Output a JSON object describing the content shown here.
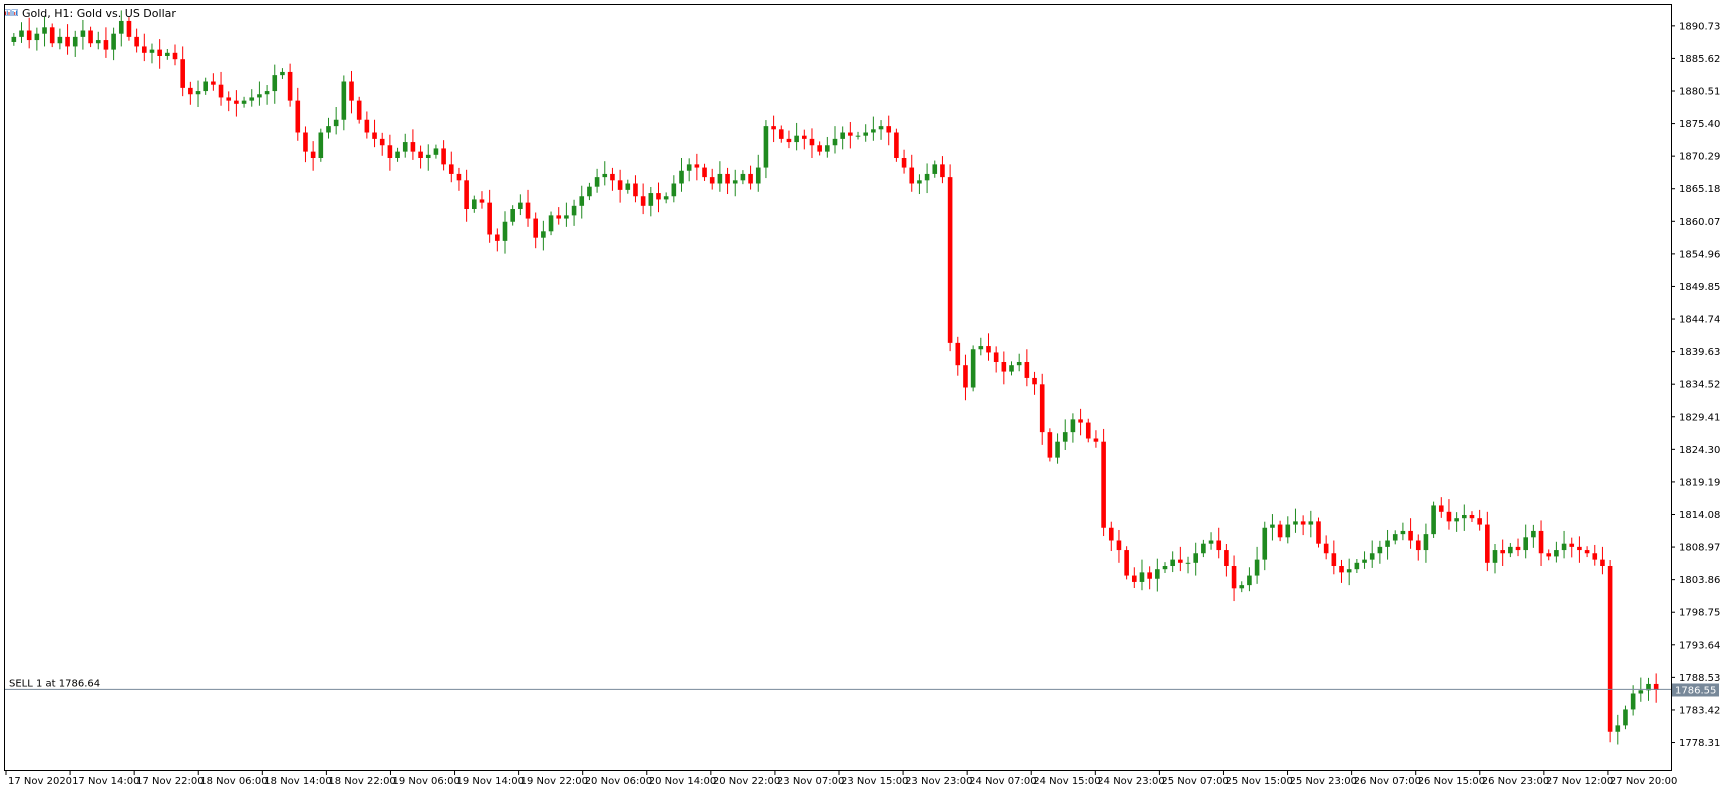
{
  "title_bar": {
    "text": "Gold, H1:  Gold vs. US Dollar",
    "icon": "chart-window-icon"
  },
  "trade_line": {
    "label": "SELL 1 at 1786.64",
    "price": 1786.64,
    "current_price_label": "1786.55",
    "current_price": 1786.55
  },
  "colors": {
    "bull": "#1f8a1f",
    "bear": "#ff0000",
    "wick": "#000000",
    "trade_line": "#778899",
    "price_tag_bg": "#778899",
    "price_tag_text": "#ffffff"
  },
  "chart_data": {
    "type": "candlestick",
    "symbol": "Gold",
    "timeframe": "H1",
    "ylim": [
      1774.0,
      1894.0
    ],
    "y_ticks": [
      "1890.73",
      "1885.62",
      "1880.51",
      "1875.40",
      "1870.29",
      "1865.18",
      "1860.07",
      "1854.96",
      "1849.85",
      "1844.74",
      "1839.63",
      "1834.52",
      "1829.41",
      "1824.30",
      "1819.19",
      "1814.08",
      "1808.97",
      "1803.86",
      "1798.75",
      "1793.64",
      "1788.53",
      "1783.42",
      "1778.31"
    ],
    "x_ticks": [
      "17 Nov 2020",
      "17 Nov 14:00",
      "17 Nov 22:00",
      "18 Nov 06:00",
      "18 Nov 14:00",
      "18 Nov 22:00",
      "19 Nov 06:00",
      "19 Nov 14:00",
      "19 Nov 22:00",
      "20 Nov 06:00",
      "20 Nov 14:00",
      "20 Nov 22:00",
      "23 Nov 07:00",
      "23 Nov 15:00",
      "23 Nov 23:00",
      "24 Nov 07:00",
      "24 Nov 15:00",
      "24 Nov 23:00",
      "25 Nov 07:00",
      "25 Nov 15:00",
      "25 Nov 23:00",
      "26 Nov 07:00",
      "26 Nov 15:00",
      "26 Nov 23:00",
      "27 Nov 12:00",
      "27 Nov 20:00"
    ],
    "close_path": [
      1889.0,
      1890.0,
      1888.5,
      1889.5,
      1890.5,
      1888.0,
      1889.0,
      1887.5,
      1889.0,
      1890.0,
      1888.0,
      1888.5,
      1887.0,
      1889.5,
      1891.5,
      1889.0,
      1887.5,
      1886.5,
      1887.0,
      1886.0,
      1886.5,
      1885.5,
      1881.0,
      1880.0,
      1880.5,
      1882.0,
      1881.5,
      1879.5,
      1879.0,
      1878.5,
      1879.0,
      1879.5,
      1880.0,
      1880.5,
      1883.0,
      1883.5,
      1879.0,
      1874.0,
      1871.0,
      1870.0,
      1874.0,
      1875.0,
      1876.0,
      1882.0,
      1879.0,
      1876.0,
      1874.0,
      1873.0,
      1872.0,
      1870.0,
      1871.0,
      1872.5,
      1871.0,
      1870.0,
      1870.5,
      1871.5,
      1869.0,
      1867.5,
      1866.5,
      1862.0,
      1863.5,
      1863.0,
      1858.0,
      1857.0,
      1860.0,
      1862.0,
      1863.0,
      1860.5,
      1857.5,
      1858.5,
      1861.0,
      1860.5,
      1861.0,
      1862.5,
      1864.0,
      1865.5,
      1867.0,
      1867.5,
      1866.5,
      1865.0,
      1866.0,
      1864.0,
      1862.5,
      1864.5,
      1863.5,
      1864.0,
      1866.0,
      1868.0,
      1869.0,
      1868.5,
      1867.0,
      1866.0,
      1867.5,
      1866.0,
      1866.5,
      1867.5,
      1866.0,
      1868.5,
      1875.0,
      1874.5,
      1873.0,
      1872.5,
      1873.5,
      1873.0,
      1872.0,
      1871.0,
      1872.0,
      1873.0,
      1874.0,
      1873.5,
      1873.5,
      1874.0,
      1874.5,
      1875.0,
      1874.0,
      1870.0,
      1868.5,
      1866.0,
      1866.5,
      1867.5,
      1869.0,
      1867.0,
      1841.0,
      1837.5,
      1834.0,
      1840.0,
      1840.5,
      1839.5,
      1838.0,
      1836.5,
      1837.5,
      1838.0,
      1835.5,
      1834.5,
      1827.0,
      1823.0,
      1825.5,
      1827.0,
      1829.0,
      1828.5,
      1826.0,
      1825.5,
      1812.0,
      1810.0,
      1808.5,
      1804.5,
      1803.5,
      1805.0,
      1804.0,
      1805.5,
      1806.0,
      1807.0,
      1806.5,
      1806.5,
      1808.0,
      1809.5,
      1810.0,
      1808.5,
      1806.0,
      1802.5,
      1803.0,
      1804.5,
      1807.0,
      1812.0,
      1812.5,
      1810.5,
      1812.5,
      1813.0,
      1812.5,
      1813.0,
      1809.5,
      1808.0,
      1806.0,
      1805.0,
      1805.5,
      1806.5,
      1807.0,
      1808.0,
      1809.0,
      1810.0,
      1811.0,
      1811.5,
      1810.0,
      1808.5,
      1811.0,
      1815.5,
      1814.5,
      1813.0,
      1813.5,
      1814.0,
      1813.5,
      1812.5,
      1806.5,
      1808.5,
      1808.0,
      1809.0,
      1808.5,
      1810.5,
      1811.5,
      1808.0,
      1807.5,
      1808.5,
      1809.5,
      1809.0,
      1808.5,
      1808.0,
      1807.0,
      1806.0,
      1780.0,
      1781.0,
      1783.5,
      1786.0,
      1786.5,
      1787.5,
      1786.55
    ]
  }
}
